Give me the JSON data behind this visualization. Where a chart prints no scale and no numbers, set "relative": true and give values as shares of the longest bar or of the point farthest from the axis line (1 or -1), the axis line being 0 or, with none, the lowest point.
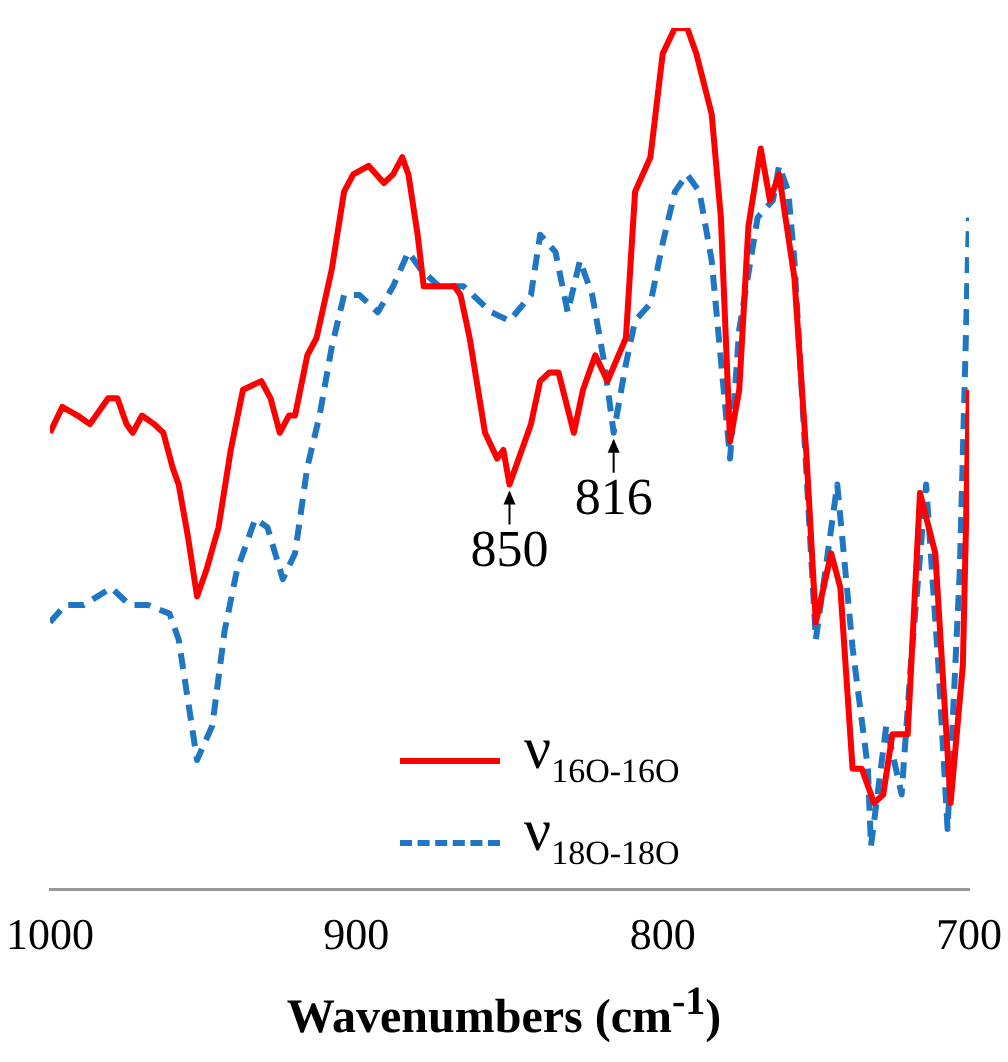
{
  "chart_data": {
    "type": "line",
    "relative": true,
    "xlabel": "Wavenumbers (cm$^{-1}$)",
    "xlim": [
      1000,
      700
    ],
    "xticks": [
      1000,
      900,
      800,
      700
    ],
    "grid": false,
    "legend": "bottom",
    "marker": "none",
    "annotations": [
      {
        "text": "850",
        "x": 850,
        "y": 0.47
      },
      {
        "text": "816",
        "x": 816,
        "y": 0.53
      }
    ],
    "series": [
      {
        "name": "ν$_{16O-16O}$",
        "color": "#ff0000",
        "line_style": "solid",
        "x": [
          1000,
          996,
          991,
          987,
          981,
          978,
          975,
          973,
          970,
          966,
          963,
          960,
          958,
          955,
          952,
          949,
          945,
          941,
          937,
          931,
          928,
          925,
          922,
          920,
          916,
          913,
          908,
          904,
          901,
          896,
          891,
          888,
          885,
          883,
          880,
          878,
          874,
          868,
          866,
          863,
          858,
          854,
          852,
          850,
          843,
          840,
          837,
          834,
          829,
          826,
          822,
          818,
          812,
          809,
          804,
          800,
          796,
          792,
          789,
          784,
          781,
          778,
          775,
          772,
          768,
          765,
          762,
          757,
          753,
          750,
          745,
          742,
          738,
          735,
          731,
          728,
          725,
          720,
          716,
          711,
          706,
          702,
          700
        ],
        "values": [
          0.53,
          0.56,
          0.55,
          0.54,
          0.57,
          0.57,
          0.54,
          0.53,
          0.55,
          0.54,
          0.53,
          0.49,
          0.47,
          0.41,
          0.34,
          0.37,
          0.42,
          0.51,
          0.58,
          0.59,
          0.57,
          0.53,
          0.55,
          0.55,
          0.62,
          0.64,
          0.72,
          0.81,
          0.83,
          0.84,
          0.82,
          0.83,
          0.85,
          0.83,
          0.76,
          0.7,
          0.7,
          0.7,
          0.69,
          0.64,
          0.53,
          0.5,
          0.51,
          0.47,
          0.54,
          0.59,
          0.6,
          0.6,
          0.53,
          0.58,
          0.62,
          0.59,
          0.64,
          0.81,
          0.85,
          0.97,
          1.0,
          1.0,
          0.97,
          0.9,
          0.78,
          0.52,
          0.58,
          0.77,
          0.86,
          0.8,
          0.83,
          0.71,
          0.5,
          0.31,
          0.39,
          0.35,
          0.14,
          0.14,
          0.1,
          0.11,
          0.18,
          0.18,
          0.46,
          0.39,
          0.1,
          0.26,
          0.58
        ]
      },
      {
        "name": "ν$_{18O-18O}$",
        "color": "#1f77c4",
        "line_style": "dashed",
        "x": [
          1000,
          995,
          989,
          980,
          974,
          968,
          961,
          958,
          952,
          947,
          943,
          939,
          933,
          929,
          924,
          920,
          916,
          912,
          908,
          904,
          899,
          893,
          888,
          883,
          879,
          873,
          865,
          856,
          850,
          843,
          840,
          835,
          831,
          827,
          823,
          819,
          816,
          812,
          809,
          804,
          800,
          796,
          792,
          788,
          784,
          778,
          775,
          769,
          764,
          762,
          759,
          757,
          750,
          743,
          738,
          733,
          732,
          727,
          722,
          719,
          714,
          710,
          707,
          703,
          700
        ],
        "values": [
          0.31,
          0.33,
          0.33,
          0.35,
          0.33,
          0.33,
          0.32,
          0.29,
          0.15,
          0.19,
          0.3,
          0.37,
          0.43,
          0.42,
          0.36,
          0.39,
          0.49,
          0.55,
          0.63,
          0.69,
          0.69,
          0.67,
          0.7,
          0.74,
          0.72,
          0.7,
          0.7,
          0.67,
          0.66,
          0.69,
          0.76,
          0.74,
          0.67,
          0.73,
          0.69,
          0.61,
          0.53,
          0.61,
          0.66,
          0.68,
          0.75,
          0.81,
          0.83,
          0.81,
          0.73,
          0.5,
          0.65,
          0.78,
          0.8,
          0.84,
          0.81,
          0.73,
          0.29,
          0.47,
          0.28,
          0.14,
          0.05,
          0.19,
          0.11,
          0.26,
          0.47,
          0.26,
          0.07,
          0.37,
          0.78
        ]
      }
    ]
  }
}
